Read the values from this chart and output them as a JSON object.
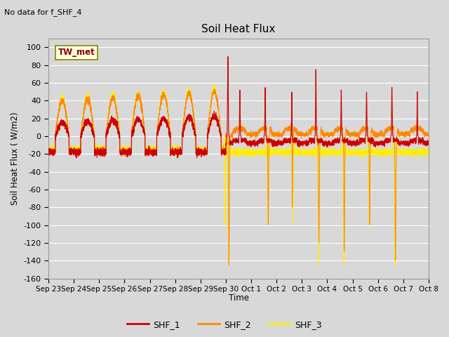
{
  "title": "Soil Heat Flux",
  "subtitle": "No data for f_SHF_4",
  "ylabel": "Soil Heat Flux ( W/m2)",
  "xlabel": "Time",
  "ylim": [
    -160,
    110
  ],
  "yticks": [
    -160,
    -140,
    -120,
    -100,
    -80,
    -60,
    -40,
    -20,
    0,
    20,
    40,
    60,
    80,
    100
  ],
  "bg_color": "#d8d8d8",
  "grid_color": "#ffffff",
  "legend_label": "TW_met",
  "series_colors": {
    "SHF_1": "#cc0000",
    "SHF_2": "#ff8800",
    "SHF_3": "#ffee00"
  },
  "x_tick_labels": [
    "Sep 23",
    "Sep 24",
    "Sep 25",
    "Sep 26",
    "Sep 27",
    "Sep 28",
    "Sep 29",
    "Sep 30",
    "Oct 1",
    "Oct 2",
    "Oct 3",
    "Oct 4",
    "Oct 5",
    "Oct 6",
    "Oct 7",
    "Oct 8"
  ]
}
